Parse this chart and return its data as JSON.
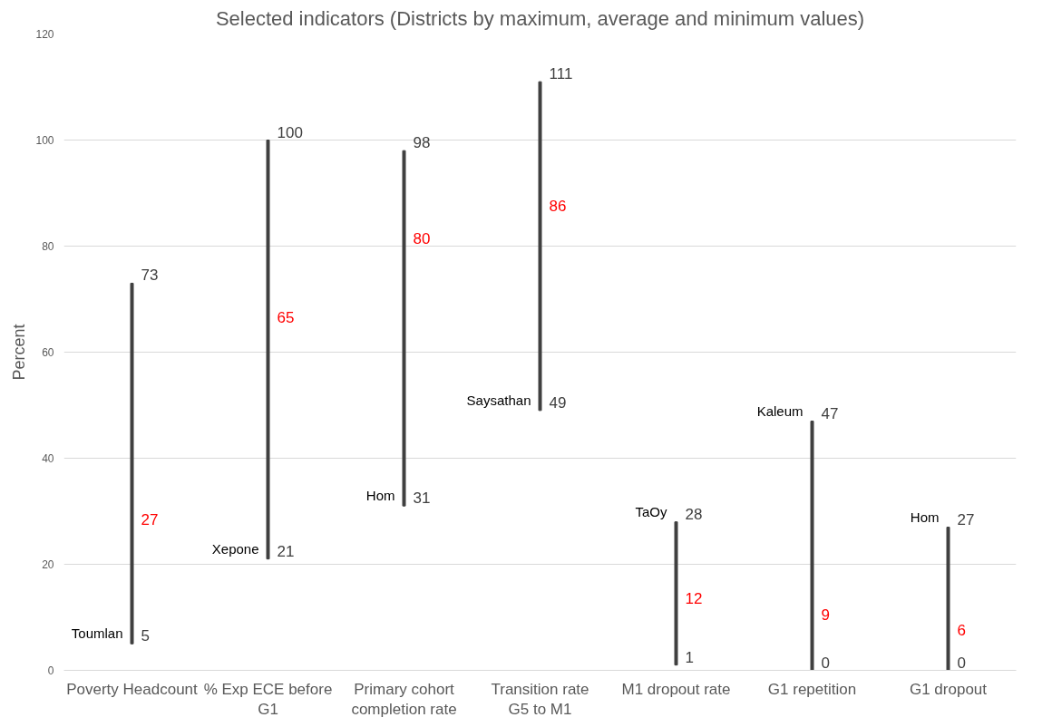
{
  "chart_data": {
    "type": "bar",
    "title": "Selected indicators (Districts by maximum, average and minimum values)",
    "ylabel": "Percent",
    "categories": [
      "Poverty Headcount",
      "% Exp ECE before G1",
      "Primary cohort completion rate",
      "Transition rate G5 to M1",
      "M1 dropout rate",
      "G1 repetition",
      "G1 dropout"
    ],
    "series": [
      {
        "color": "#404040",
        "base": [
          5,
          21,
          31,
          49,
          1,
          0,
          0
        ],
        "values": [
          68,
          79,
          67,
          62,
          27,
          47,
          27
        ]
      }
    ],
    "annotations": [
      {
        "text": "73",
        "x": "Poverty Headcount",
        "y": 73
      },
      {
        "text": "100",
        "x": "% Exp ECE before G1",
        "y": 100
      },
      {
        "text": "98",
        "x": "Primary cohort completion rate",
        "y": 98
      },
      {
        "text": "111",
        "x": "Transition rate G5 to M1",
        "y": 111
      },
      {
        "text": "TaOy",
        "x": "M1 dropout rate",
        "y": 28
      },
      {
        "text": "28",
        "x": "M1 dropout rate",
        "y": 28
      },
      {
        "text": "Kaleum",
        "x": "G1 repetition",
        "y": 47
      },
      {
        "text": "47",
        "x": "G1 repetition",
        "y": 47
      },
      {
        "text": "Hom",
        "x": "G1 dropout",
        "y": 27
      },
      {
        "text": "27",
        "x": "G1 dropout",
        "y": 27
      },
      {
        "text": "27",
        "x": "Poverty Headcount",
        "y": 27
      },
      {
        "text": "65",
        "x": "% Exp ECE before G1",
        "y": 65
      },
      {
        "text": "80",
        "x": "Primary cohort completion rate",
        "y": 80
      },
      {
        "text": "86",
        "x": "Transition rate G5 to M1",
        "y": 86
      },
      {
        "text": "12",
        "x": "M1 dropout rate",
        "y": 12
      },
      {
        "text": "9",
        "x": "G1 repetition",
        "y": 9
      },
      {
        "text": "6",
        "x": "G1 dropout",
        "y": 6
      },
      {
        "text": "Toumlan",
        "x": "Poverty Headcount",
        "y": 5
      },
      {
        "text": "5",
        "x": "Poverty Headcount",
        "y": 5
      },
      {
        "text": "Xepone",
        "x": "% Exp ECE before G1",
        "y": 21
      },
      {
        "text": "21",
        "x": "% Exp ECE before G1",
        "y": 21
      },
      {
        "text": "Hom",
        "x": "Primary cohort completion rate",
        "y": 31
      },
      {
        "text": "31",
        "x": "Primary cohort completion rate",
        "y": 31
      },
      {
        "text": "Saysathan",
        "x": "Transition rate G5 to M1",
        "y": 49
      },
      {
        "text": "49",
        "x": "Transition rate G5 to M1",
        "y": 49
      },
      {
        "text": "1",
        "x": "M1 dropout rate",
        "y": 1
      },
      {
        "text": "0",
        "x": "G1 repetition",
        "y": 0
      },
      {
        "text": "0",
        "x": "G1 dropout",
        "y": 0
      }
    ],
    "ylim": [
      0,
      120
    ],
    "yticks": [
      0,
      20,
      40,
      60,
      80,
      100,
      120
    ],
    "grid": "y"
  }
}
